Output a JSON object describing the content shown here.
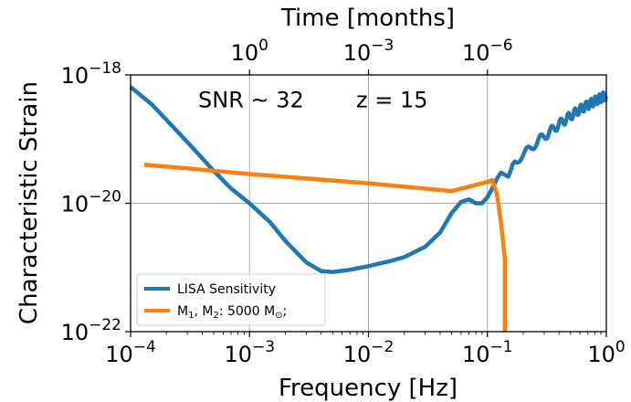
{
  "chart_data": {
    "type": "line",
    "xscale": "log",
    "yscale": "log",
    "xlim": [
      0.0001,
      1
    ],
    "ylim": [
      1e-22,
      1e-18
    ],
    "grid": true,
    "xlabel": "Frequency [Hz]",
    "ylabel": "Characteristic Strain",
    "top_xlabel": "Time [months]",
    "x_ticks": [
      {
        "value": 0.0001,
        "base": "10",
        "exp": "−4"
      },
      {
        "value": 0.001,
        "base": "10",
        "exp": "−3"
      },
      {
        "value": 0.01,
        "base": "10",
        "exp": "−2"
      },
      {
        "value": 0.1,
        "base": "10",
        "exp": "−1"
      },
      {
        "value": 1,
        "base": "10",
        "exp": "0"
      }
    ],
    "y_ticks": [
      {
        "value": 1e-22,
        "base": "10",
        "exp": "−22"
      },
      {
        "value": 1e-20,
        "base": "10",
        "exp": "−20"
      },
      {
        "value": 1e-18,
        "base": "10",
        "exp": "−18"
      }
    ],
    "top_ticks": [
      {
        "freq": 0.001,
        "base": "10",
        "exp": "0"
      },
      {
        "freq": 0.01,
        "base": "10",
        "exp": "−3"
      },
      {
        "freq": 0.1,
        "base": "10",
        "exp": "−6"
      }
    ],
    "annotation": {
      "snr_text": "SNR  ~  32",
      "z_text": "z = 15",
      "x": 0.00037,
      "y": 3.1e-19
    },
    "legend": {
      "position": "lower-left",
      "entries": [
        {
          "label": "LISA Sensitivity",
          "color": "#1f77b4"
        },
        {
          "label_parts": [
            "M",
            "1",
            ", M",
            "2",
            ": 5000 M",
            "⊙",
            ";"
          ],
          "color": "#ff7f0e"
        }
      ]
    },
    "series": [
      {
        "name": "LISA Sensitivity",
        "color": "#1f77b4",
        "points": [
          [
            0.0001,
            6.5e-19
          ],
          [
            0.00015,
            3.5e-19
          ],
          [
            0.0002,
            2e-19
          ],
          [
            0.0003,
            9e-20
          ],
          [
            0.0005,
            3.2e-20
          ],
          [
            0.0007,
            1.7e-20
          ],
          [
            0.001,
            1e-20
          ],
          [
            0.0015,
            5e-21
          ],
          [
            0.002,
            2.6e-21
          ],
          [
            0.003,
            1.2e-21
          ],
          [
            0.004,
            8.8e-22
          ],
          [
            0.005,
            8.5e-22
          ],
          [
            0.007,
            9.2e-22
          ],
          [
            0.01,
            1.05e-21
          ],
          [
            0.015,
            1.25e-21
          ],
          [
            0.02,
            1.45e-21
          ],
          [
            0.03,
            2.1e-21
          ],
          [
            0.04,
            3.5e-21
          ],
          [
            0.05,
            7e-21
          ],
          [
            0.06,
            1.05e-20
          ],
          [
            0.07,
            1.15e-20
          ],
          [
            0.08,
            1e-20
          ],
          [
            0.09,
            1e-20
          ],
          [
            0.1,
            1.25e-20
          ],
          [
            0.11,
            1.7e-20
          ],
          [
            0.12,
            2.4e-20
          ],
          [
            0.13,
            3e-20
          ],
          [
            0.15,
            2.6e-20
          ],
          [
            0.17,
            4.8e-20
          ],
          [
            0.2,
            5.5e-20
          ],
          [
            0.25,
            8.5e-20
          ],
          [
            0.3,
            1.1e-19
          ],
          [
            0.4,
            1.7e-19
          ],
          [
            0.5,
            2.3e-19
          ],
          [
            0.6,
            2.9e-19
          ],
          [
            0.7,
            3.4e-19
          ],
          [
            0.8,
            3.9e-19
          ],
          [
            0.9,
            4.4e-19
          ],
          [
            1.0,
            4.8e-19
          ]
        ]
      },
      {
        "name": "M1, M2: 5000 M⊙;",
        "color": "#ff7f0e",
        "points": [
          [
            0.00013,
            4e-20
          ],
          [
            0.0003,
            3.5e-20
          ],
          [
            0.001,
            2.85e-20
          ],
          [
            0.01,
            2.05e-20
          ],
          [
            0.05,
            1.55e-20
          ],
          [
            0.1,
            2.15e-20
          ],
          [
            0.11,
            2.3e-20
          ],
          [
            0.12,
            1.4e-20
          ],
          [
            0.13,
            5e-21
          ],
          [
            0.14,
            1.4e-21
          ],
          [
            0.14,
            1e-22
          ]
        ]
      }
    ]
  }
}
